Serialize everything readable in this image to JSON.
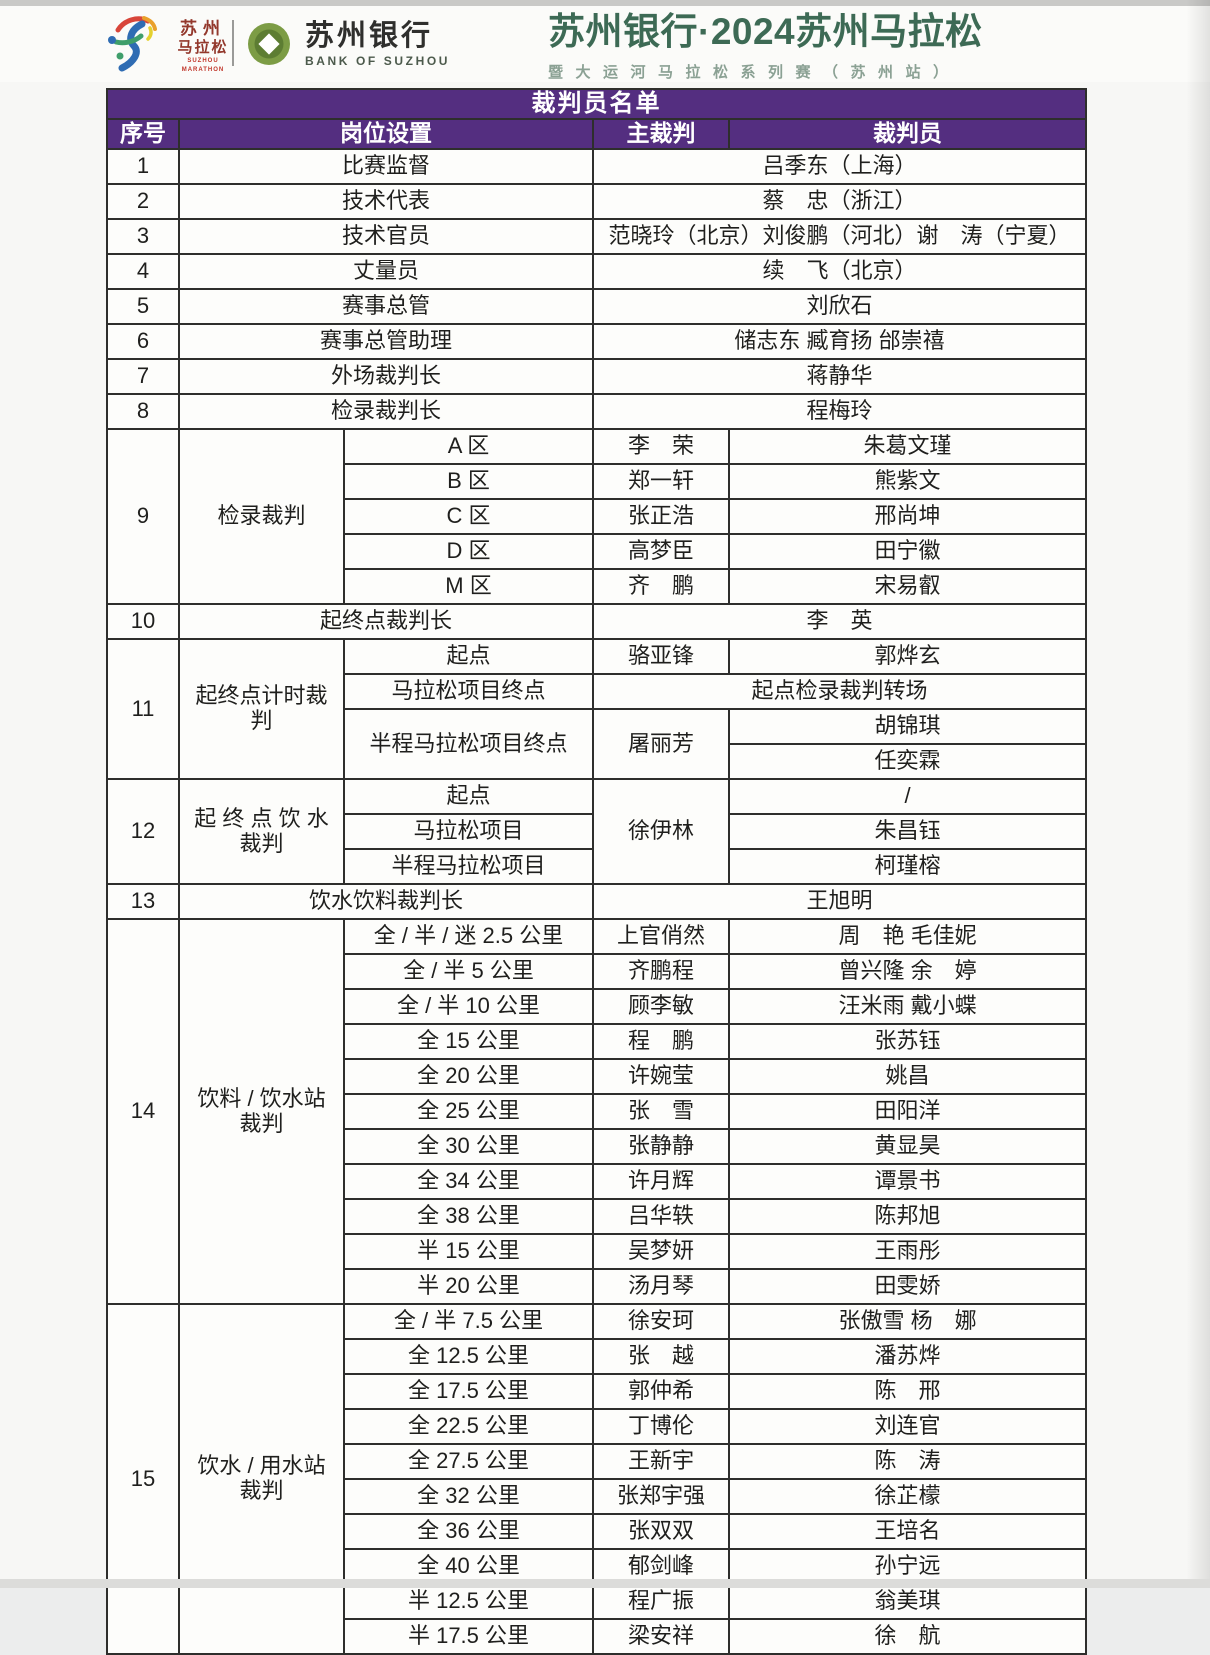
{
  "header": {
    "marathon_logo": {
      "line1": "苏州",
      "line2": "马拉松",
      "sub": "SUZHOU MARATHON"
    },
    "bank_logo": {
      "name": "苏州银行",
      "sub": "BANK OF SUZHOU"
    },
    "title": "苏州银行·2024苏州马拉松",
    "subtitle": "暨大运河马拉松系列赛（苏州站）"
  },
  "colors": {
    "purple": "#542e80",
    "title_green": "#3d6a55",
    "subtitle_green": "#8ba194",
    "bank_green": "#7c9c45",
    "logo_red": "#93382c"
  },
  "table": {
    "title": "裁判员名单",
    "header_cells": [
      {
        "t": "序号"
      },
      {
        "t": "岗位设置",
        "cs": 2
      },
      {
        "t": "主裁判"
      },
      {
        "t": "裁判员"
      }
    ],
    "rows": [
      [
        {
          "t": "1"
        },
        {
          "t": "比赛监督",
          "cs": 2
        },
        {
          "t": "吕季东（上海）",
          "cs": 2
        }
      ],
      [
        {
          "t": "2"
        },
        {
          "t": "技术代表",
          "cs": 2
        },
        {
          "t": "蔡　忠（浙江）",
          "cs": 2
        }
      ],
      [
        {
          "t": "3"
        },
        {
          "t": "技术官员",
          "cs": 2
        },
        {
          "t": "范晓玲（北京）刘俊鹏（河北）谢　涛（宁夏）",
          "cs": 2
        }
      ],
      [
        {
          "t": "4"
        },
        {
          "t": "丈量员",
          "cs": 2
        },
        {
          "t": "续　飞（北京）",
          "cs": 2
        }
      ],
      [
        {
          "t": "5"
        },
        {
          "t": "赛事总管",
          "cs": 2
        },
        {
          "t": "刘欣石",
          "cs": 2
        }
      ],
      [
        {
          "t": "6"
        },
        {
          "t": "赛事总管助理",
          "cs": 2
        },
        {
          "t": "储志东 臧育扬 邰崇禧",
          "cs": 2
        }
      ],
      [
        {
          "t": "7"
        },
        {
          "t": "外场裁判长",
          "cs": 2
        },
        {
          "t": "蒋静华",
          "cs": 2
        }
      ],
      [
        {
          "t": "8"
        },
        {
          "t": "检录裁判长",
          "cs": 2
        },
        {
          "t": "程梅玲",
          "cs": 2
        }
      ],
      [
        {
          "t": "9",
          "rs": 5
        },
        {
          "t": "检录裁判",
          "rs": 5
        },
        {
          "t": "A 区"
        },
        {
          "t": "李　荣"
        },
        {
          "t": "朱葛文瑾"
        }
      ],
      [
        {
          "t": "B 区"
        },
        {
          "t": "郑一轩"
        },
        {
          "t": "熊紫文"
        }
      ],
      [
        {
          "t": "C 区"
        },
        {
          "t": "张正浩"
        },
        {
          "t": "邢尚坤"
        }
      ],
      [
        {
          "t": "D 区"
        },
        {
          "t": "高梦臣"
        },
        {
          "t": "田宁徽"
        }
      ],
      [
        {
          "t": "M 区"
        },
        {
          "t": "齐　鹏"
        },
        {
          "t": "宋易叡"
        }
      ],
      [
        {
          "t": "10"
        },
        {
          "t": "起终点裁判长",
          "cs": 2
        },
        {
          "t": "李　英",
          "cs": 2
        }
      ],
      [
        {
          "t": "11",
          "rs": 4
        },
        {
          "t": "起终点计时裁\n判",
          "rs": 4
        },
        {
          "t": "起点"
        },
        {
          "t": "骆亚锋"
        },
        {
          "t": "郭烨玄"
        }
      ],
      [
        {
          "t": "马拉松项目终点"
        },
        {
          "t": "起点检录裁判转场",
          "cs": 2
        }
      ],
      [
        {
          "t": "半程马拉松项目终点",
          "rs": 2
        },
        {
          "t": "屠丽芳",
          "rs": 2
        },
        {
          "t": "胡锦琪"
        }
      ],
      [
        {
          "t": "任奕霖"
        }
      ],
      [
        {
          "t": "12",
          "rs": 3
        },
        {
          "t": "起 终 点 饮 水\n裁判",
          "rs": 3
        },
        {
          "t": "起点"
        },
        {
          "t": "徐伊林",
          "rs": 3
        },
        {
          "t": "/"
        }
      ],
      [
        {
          "t": "马拉松项目"
        },
        {
          "t": "朱昌钰"
        }
      ],
      [
        {
          "t": "半程马拉松项目"
        },
        {
          "t": "柯瑾榕"
        }
      ],
      [
        {
          "t": "13"
        },
        {
          "t": "饮水饮料裁判长",
          "cs": 2
        },
        {
          "t": "王旭明",
          "cs": 2
        }
      ],
      [
        {
          "t": "14",
          "rs": 11
        },
        {
          "t": "饮料 / 饮水站\n裁判",
          "rs": 11
        },
        {
          "t": "全 / 半 / 迷 2.5 公里"
        },
        {
          "t": "上官俏然"
        },
        {
          "t": "周　艳 毛佳妮"
        }
      ],
      [
        {
          "t": "全 / 半 5 公里"
        },
        {
          "t": "齐鹏程"
        },
        {
          "t": "曾兴隆 余　婷"
        }
      ],
      [
        {
          "t": "全 / 半 10 公里"
        },
        {
          "t": "顾李敏"
        },
        {
          "t": "汪米雨 戴小蝶"
        }
      ],
      [
        {
          "t": "全 15 公里"
        },
        {
          "t": "程　鹏"
        },
        {
          "t": "张苏钰"
        }
      ],
      [
        {
          "t": "全 20 公里"
        },
        {
          "t": "许婉莹"
        },
        {
          "t": "姚昌"
        }
      ],
      [
        {
          "t": "全 25 公里"
        },
        {
          "t": "张　雪"
        },
        {
          "t": "田阳洋"
        }
      ],
      [
        {
          "t": "全 30 公里"
        },
        {
          "t": "张静静"
        },
        {
          "t": "黄显昊"
        }
      ],
      [
        {
          "t": "全 34 公里"
        },
        {
          "t": "许月辉"
        },
        {
          "t": "谭景书"
        }
      ],
      [
        {
          "t": "全 38 公里"
        },
        {
          "t": "吕华轶"
        },
        {
          "t": "陈邦旭"
        }
      ],
      [
        {
          "t": "半 15 公里"
        },
        {
          "t": "吴梦妍"
        },
        {
          "t": "王雨彤"
        }
      ],
      [
        {
          "t": "半 20 公里"
        },
        {
          "t": "汤月琴"
        },
        {
          "t": "田雯娇"
        }
      ],
      [
        {
          "t": "15",
          "rs": 10
        },
        {
          "t": "饮水 / 用水站\n裁判",
          "rs": 10
        },
        {
          "t": "全 / 半 7.5 公里"
        },
        {
          "t": "徐安珂"
        },
        {
          "t": "张傲雪 杨　娜"
        }
      ],
      [
        {
          "t": "全 12.5 公里"
        },
        {
          "t": "张　越"
        },
        {
          "t": "潘苏烨"
        }
      ],
      [
        {
          "t": "全 17.5 公里"
        },
        {
          "t": "郭仲希"
        },
        {
          "t": "陈　邢"
        }
      ],
      [
        {
          "t": "全 22.5 公里"
        },
        {
          "t": "丁博伦"
        },
        {
          "t": "刘连官"
        }
      ],
      [
        {
          "t": "全 27.5 公里"
        },
        {
          "t": "王新宇"
        },
        {
          "t": "陈　涛"
        }
      ],
      [
        {
          "t": "全 32 公里"
        },
        {
          "t": "张郑宇强"
        },
        {
          "t": "徐芷檬"
        }
      ],
      [
        {
          "t": "全 36 公里"
        },
        {
          "t": "张双双"
        },
        {
          "t": "王培名"
        }
      ],
      [
        {
          "t": "全 40 公里"
        },
        {
          "t": "郁剑峰"
        },
        {
          "t": "孙宁远"
        }
      ],
      [
        {
          "t": "半 12.5 公里"
        },
        {
          "t": "程广振"
        },
        {
          "t": "翁美琪"
        }
      ],
      [
        {
          "t": "半 17.5 公里"
        },
        {
          "t": "梁安祥"
        },
        {
          "t": "徐　航"
        }
      ]
    ]
  }
}
